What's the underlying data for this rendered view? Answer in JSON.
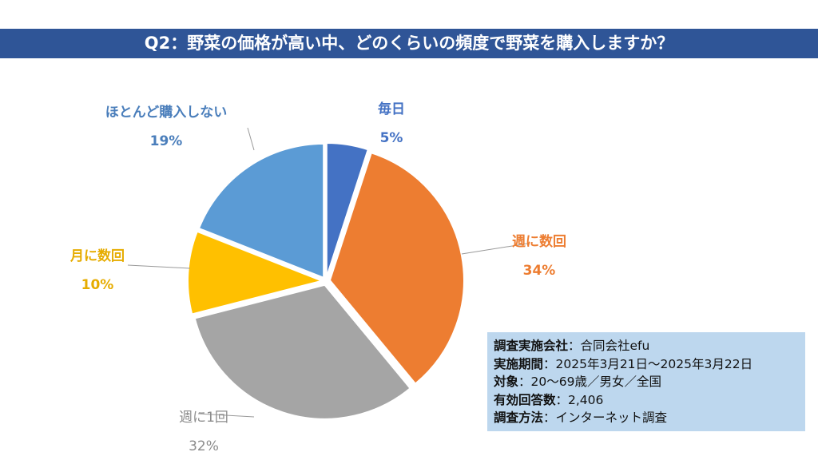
{
  "chart_data": {
    "type": "pie",
    "title": "Q2：野菜の価格が高い中、どのくらいの頻度で野菜を購入しますか？",
    "slices": [
      {
        "name": "毎日",
        "value": 5,
        "label": "5%",
        "color": "#4472C4"
      },
      {
        "name": "週に数回",
        "value": 34,
        "label": "34%",
        "color": "#ED7D31"
      },
      {
        "name": "週に1回",
        "value": 32,
        "label": "32%",
        "color": "#A5A5A5"
      },
      {
        "name": "月に数回",
        "value": 10,
        "label": "10%",
        "color": "#FFC000"
      },
      {
        "name": "ほとんど購入しない",
        "value": 19,
        "label": "19%",
        "color": "#5B9BD5"
      }
    ],
    "start": "top",
    "direction": "clockwise"
  },
  "info": [
    {
      "key": "調査実施会社",
      "value": "：合同会社efu"
    },
    {
      "key": "実施期間",
      "value": "：2025年3月21日～2025年3月22日"
    },
    {
      "key": "対象",
      "value": "：20～69歳／男女／全国"
    },
    {
      "key": "有効回答数",
      "value": "：2,406"
    },
    {
      "key": "調査方法",
      "value": "：インターネット調査"
    }
  ]
}
